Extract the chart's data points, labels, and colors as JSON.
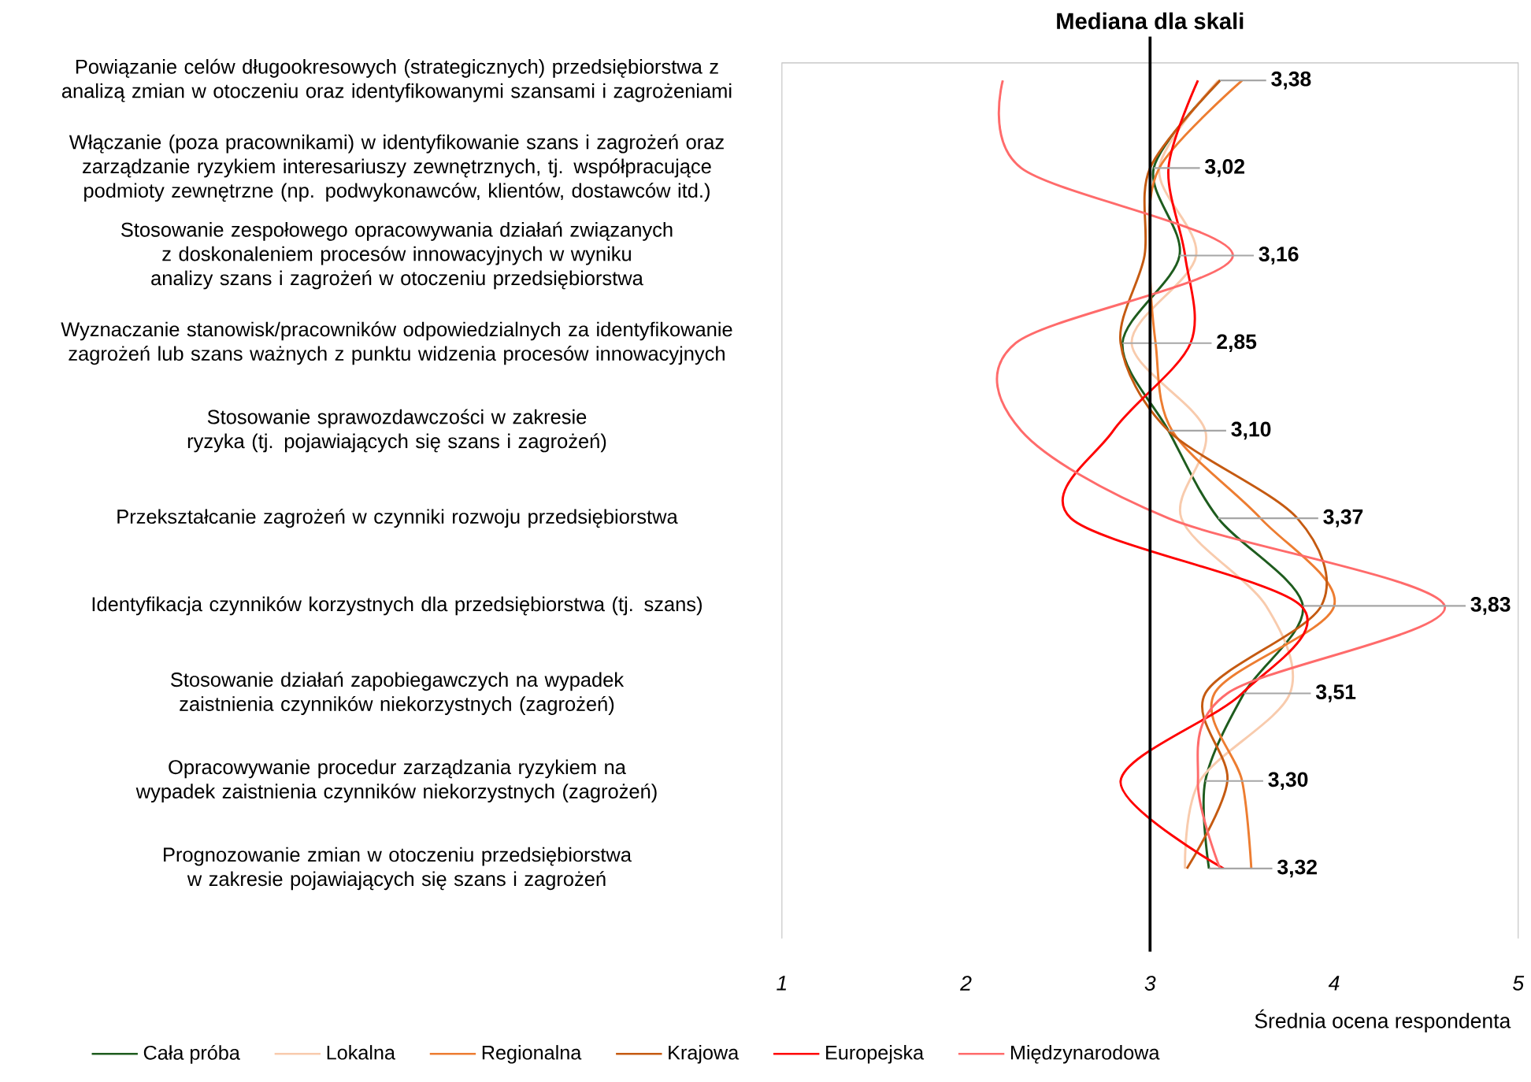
{
  "chart_data": {
    "type": "line",
    "orientation": "horizontal",
    "xlabel": "Średnia ocena respondenta",
    "categories": [
      "Powiązanie celów długookresowych (strategicznych) przedsiębiorstwa z analizą zmian w otoczeniu oraz identyfikowanymi szansami i zagrożeniami",
      "Włączanie (poza pracownikami) w identyfikowanie szans i zagrożeń oraz zarządzanie ryzykiem interesariuszy zewnętrznych, tj. współpracujące podmioty zewnętrzne (np. podwykonawców, klientów, dostawców itd.)",
      "Stosowanie zespołowego opracowywania działań związanych z doskonaleniem procesów innowacyjnych w wyniku analizy szans i zagrożeń w otoczeniu przedsiębiorstwa",
      "Wyznaczanie stanowisk/pracowników odpowiedzialnych za identyfikowanie zagrożeń lub szans ważnych z punktu widzenia procesów innowacyjnych",
      "Stosowanie sprawozdawczości w zakresie ryzyka (tj. pojawiających się szans i zagrożeń)",
      "Przekształcanie zagrożeń w czynniki rozwoju przedsiębiorstwa",
      "Identyfikacja czynników korzystnych dla przedsiębiorstwa (tj. szans)",
      "Stosowanie działań zapobiegawczych na wypadek zaistnienia czynników niekorzystnych (zagrożeń)",
      "Opracowywanie procedur zarządzania ryzykiem na wypadek zaistnienia czynników niekorzystnych (zagrożeń)",
      "Prognozowanie zmian w otoczeniu przedsiębiorstwa w zakresie pojawiających się szans i zagrożeń"
    ],
    "series": [
      {
        "name": "Cała próba",
        "color": "#1e5c1e",
        "values": [
          3.38,
          3.02,
          3.16,
          2.85,
          3.1,
          3.37,
          3.83,
          3.51,
          3.3,
          3.32
        ],
        "value_labels": [
          "3,38",
          "3,02",
          "3,16",
          "2,85",
          "3,10",
          "3,37",
          "3,83",
          "3,51",
          "3,30",
          "3,32"
        ]
      },
      {
        "name": "Lokalna",
        "color": "#f8cbad",
        "values": [
          3.37,
          3.05,
          3.25,
          2.9,
          3.3,
          3.17,
          3.63,
          3.76,
          3.27,
          3.19
        ]
      },
      {
        "name": "Regionalna",
        "color": "#ed7d31",
        "values": [
          3.5,
          3.05,
          3.0,
          3.03,
          3.12,
          3.6,
          4.0,
          3.35,
          3.5,
          3.55
        ]
      },
      {
        "name": "Krajowa",
        "color": "#c55a11",
        "values": [
          3.38,
          3.0,
          2.97,
          2.84,
          3.1,
          3.8,
          3.93,
          3.3,
          3.42,
          3.2
        ]
      },
      {
        "name": "Europejska",
        "color": "#ff0000",
        "values": [
          3.26,
          3.1,
          3.19,
          3.22,
          2.8,
          2.57,
          3.82,
          3.5,
          2.84,
          3.4
        ]
      },
      {
        "name": "Międzynarodowa",
        "color": "#ff6b6b",
        "values": [
          2.2,
          2.3,
          3.45,
          2.27,
          2.3,
          3.1,
          4.6,
          3.42,
          3.26,
          3.38
        ]
      }
    ],
    "xlim": [
      1,
      5
    ],
    "xticks": [
      1,
      2,
      3,
      4,
      5
    ],
    "ref_lines": [
      {
        "axis": "x",
        "value": 3,
        "label": "Mediana dla skali",
        "color": "#000000"
      }
    ],
    "legend": "bottom"
  }
}
